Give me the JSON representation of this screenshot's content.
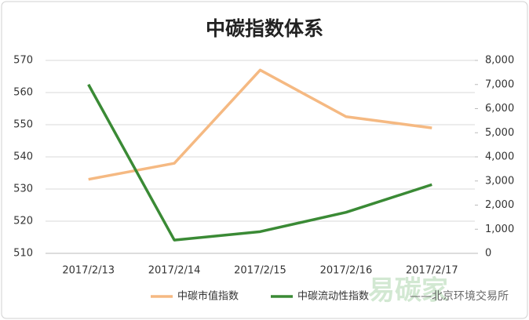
{
  "chart_data": {
    "type": "line",
    "title": "中碳指数体系",
    "categories": [
      "2017/2/13",
      "2017/2/14",
      "2017/2/15",
      "2017/2/16",
      "2017/2/17"
    ],
    "series": [
      {
        "name": "中碳市值指数",
        "color": "#f5b982",
        "values": [
          533,
          538,
          567,
          552.5,
          549
        ]
      },
      {
        "name": "中碳流动性指数",
        "color": "#3a8a35",
        "axis": "y2",
        "values": [
          7000,
          550,
          900,
          1700,
          2850
        ]
      }
    ],
    "ylim": [
      510,
      570
    ],
    "yticks": [
      510,
      520,
      530,
      540,
      550,
      560,
      570
    ],
    "y2lim": [
      0,
      8000
    ],
    "y2ticks": [
      0,
      {
        "value": 1000,
        "label": "1,000"
      },
      {
        "value": 2000,
        "label": "2,000"
      },
      {
        "value": 3000,
        "label": "3,000"
      },
      {
        "value": 4000,
        "label": "4,000"
      },
      {
        "value": 5000,
        "label": "5,000"
      },
      {
        "value": 6000,
        "label": "6,000"
      },
      {
        "value": 7000,
        "label": "7,000"
      },
      {
        "value": 8000,
        "label": "8,000"
      }
    ],
    "grid": true,
    "legend": "bottom",
    "watermarks": [
      "易碳家",
      "——北京环境交易所"
    ]
  }
}
